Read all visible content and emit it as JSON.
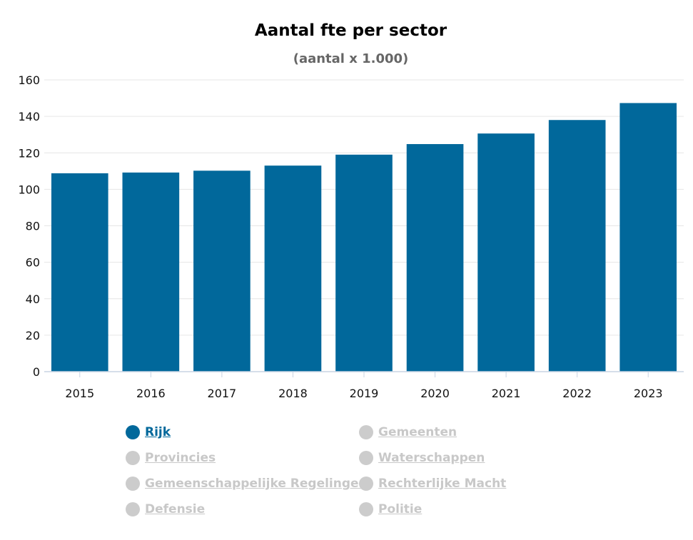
{
  "chart_data": {
    "type": "bar",
    "title": "Aantal fte per sector",
    "subtitle": "(aantal x 1.000)",
    "xlabel": "",
    "ylabel": "",
    "categories": [
      "2015",
      "2016",
      "2017",
      "2018",
      "2019",
      "2020",
      "2021",
      "2022",
      "2023"
    ],
    "series": [
      {
        "name": "Rijk",
        "values": [
          108.8,
          109.2,
          110.2,
          113.0,
          119.0,
          124.8,
          130.6,
          138.0,
          147.3
        ]
      }
    ],
    "ylim": [
      0,
      160
    ],
    "yticks": [
      "0",
      "20",
      "40",
      "60",
      "80",
      "100",
      "120",
      "140",
      "160"
    ],
    "grid": true,
    "bar_color": "#01689b",
    "legend_position": "bottom"
  },
  "legend": {
    "items": [
      {
        "label": "Rijk",
        "active": true
      },
      {
        "label": "Gemeenten",
        "active": false
      },
      {
        "label": "Provincies",
        "active": false
      },
      {
        "label": "Waterschappen",
        "active": false
      },
      {
        "label": "Gemeenschappelijke Regelingen",
        "active": false
      },
      {
        "label": "Rechterlijke Macht",
        "active": false
      },
      {
        "label": "Defensie",
        "active": false
      },
      {
        "label": "Politie",
        "active": false
      }
    ]
  }
}
